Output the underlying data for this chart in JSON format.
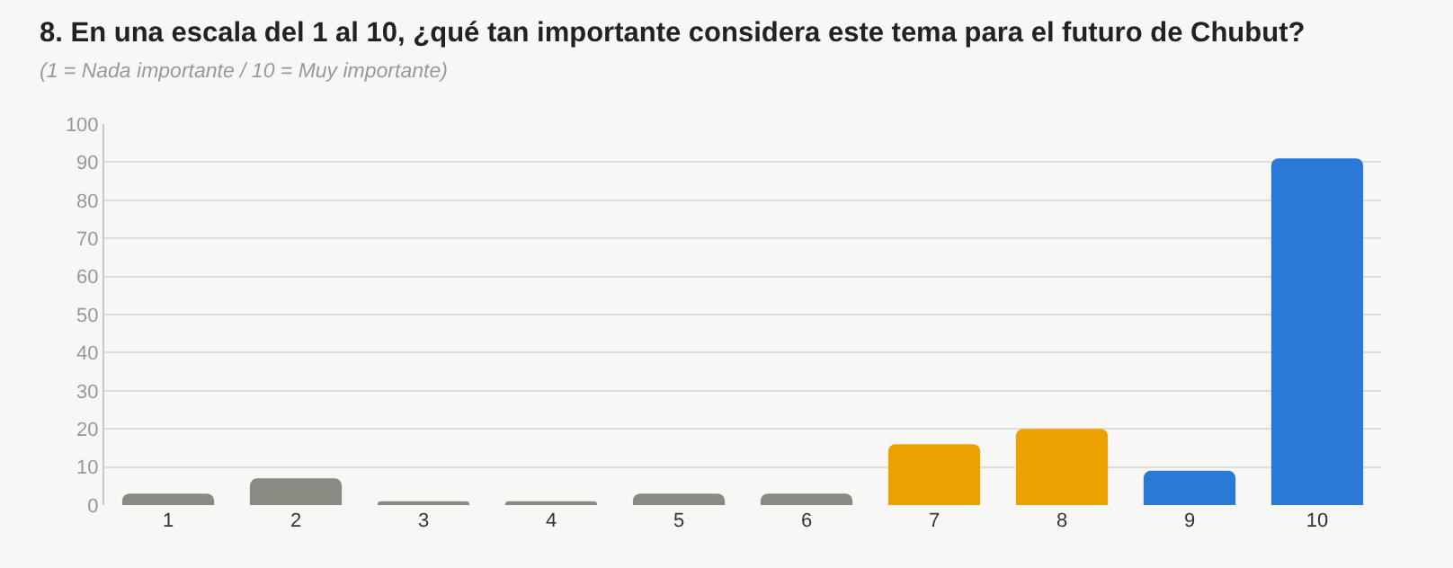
{
  "chart_data": {
    "type": "bar",
    "title": "8. En una escala del 1 al 10, ¿qué tan importante considera este tema para el futuro de Chubut?",
    "subtitle": "(1 = Nada importante / 10 = Muy importante)",
    "categories": [
      "1",
      "2",
      "3",
      "4",
      "5",
      "6",
      "7",
      "8",
      "9",
      "10"
    ],
    "values": [
      3,
      7,
      1,
      1,
      3,
      3,
      16,
      20,
      9,
      91
    ],
    "colors": [
      "#8a8a82",
      "#8a8a82",
      "#8a8a82",
      "#8a8a82",
      "#8a8a82",
      "#8a8a82",
      "#eda100",
      "#eda100",
      "#2a79d6",
      "#2a79d6"
    ],
    "ylim": [
      0,
      100
    ],
    "yticks": [
      0,
      10,
      20,
      30,
      40,
      50,
      60,
      70,
      80,
      90,
      100
    ],
    "grid": "y",
    "legend": false
  }
}
